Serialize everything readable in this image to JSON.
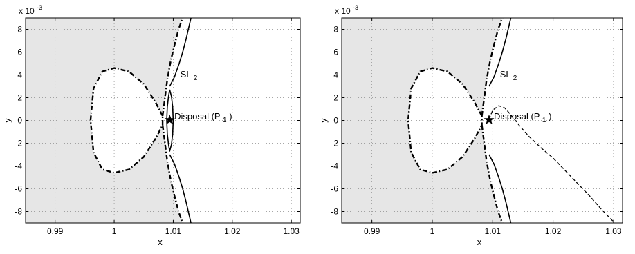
{
  "chart_data": [
    {
      "type": "line",
      "panel": "left",
      "xlabel": "x",
      "ylabel": "y",
      "y_exponent_label": "x 10",
      "y_exponent_value": "-3",
      "xlim": [
        0.985,
        1.0315
      ],
      "ylim": [
        -9,
        9
      ],
      "xticks": [
        0.99,
        1,
        1.01,
        1.02,
        1.03
      ],
      "xtick_labels": [
        "0.99",
        "1",
        "1.01",
        "1.02",
        "1.03"
      ],
      "yticks": [
        -8,
        -6,
        -4,
        -2,
        0,
        2,
        4,
        6,
        8
      ],
      "ytick_labels": [
        "-8",
        "-6",
        "-4",
        "-2",
        "0",
        "2",
        "4",
        "6",
        "8"
      ],
      "grid": true,
      "shaded_region": "forbidden region (gray)",
      "annotations": [
        {
          "label": "SL",
          "subscript": "2",
          "x": 1.0112,
          "y": 3.8
        },
        {
          "label": "Disposal (P",
          "subscript": "1",
          "suffix": ")",
          "x": 1.0102,
          "y": 0.1
        }
      ],
      "marker": {
        "symbol": "star",
        "x": 1.0094,
        "y": 0.05
      },
      "series": [
        {
          "style": "dash-dot",
          "x": [
            1.0082,
            1.007,
            1.005,
            1.0025,
            1.0,
            0.998,
            0.9965,
            0.996,
            0.9965,
            0.998,
            1.0,
            1.0025,
            1.005,
            1.007,
            1.0082
          ],
          "y": [
            0.4,
            1.6,
            3.2,
            4.3,
            4.6,
            4.3,
            2.8,
            0,
            -2.8,
            -4.3,
            -4.6,
            -4.3,
            -3.2,
            -1.6,
            -0.4
          ]
        },
        {
          "style": "dash-dot",
          "x": [
            1.0082,
            1.0086,
            1.009,
            1.0096,
            1.0103,
            1.0109,
            1.0116
          ],
          "y": [
            0.4,
            2.0,
            3.6,
            5.3,
            6.8,
            8.0,
            9.0
          ]
        },
        {
          "style": "dash-dot",
          "x": [
            1.0082,
            1.0086,
            1.009,
            1.0096,
            1.0103,
            1.0109,
            1.0116
          ],
          "y": [
            -0.4,
            -2.0,
            -3.6,
            -5.3,
            -6.8,
            -8.0,
            -9.0
          ]
        },
        {
          "style": "solid",
          "x": [
            1.0094,
            1.0102,
            1.011,
            1.0116,
            1.0122,
            1.0126,
            1.013
          ],
          "y": [
            3.0,
            3.8,
            5.0,
            6.0,
            7.2,
            8.1,
            9.0
          ]
        },
        {
          "style": "solid",
          "x": [
            1.0094,
            1.0102,
            1.011,
            1.0116,
            1.0122,
            1.0126,
            1.013
          ],
          "y": [
            -3.0,
            -3.8,
            -5.0,
            -6.0,
            -7.2,
            -8.1,
            -9.0
          ]
        },
        {
          "style": "solid",
          "x": [
            1.0094,
            1.0092,
            1.009,
            1.0089,
            1.009,
            1.0092,
            1.0094,
            1.0097,
            1.0099,
            1.01,
            1.0099,
            1.0097,
            1.0094
          ],
          "y": [
            2.7,
            2.1,
            1.2,
            0,
            -1.2,
            -2.1,
            -2.7,
            -2.1,
            -1.2,
            0,
            1.2,
            2.1,
            2.7
          ]
        }
      ]
    },
    {
      "type": "line",
      "panel": "right",
      "xlabel": "x",
      "ylabel": "y",
      "y_exponent_label": "x 10",
      "y_exponent_value": "-3",
      "xlim": [
        0.985,
        1.0315
      ],
      "ylim": [
        -9,
        9
      ],
      "xticks": [
        0.99,
        1,
        1.01,
        1.02,
        1.03
      ],
      "xtick_labels": [
        "0.99",
        "1",
        "1.01",
        "1.02",
        "1.03"
      ],
      "yticks": [
        -8,
        -6,
        -4,
        -2,
        0,
        2,
        4,
        6,
        8
      ],
      "ytick_labels": [
        "-8",
        "-6",
        "-4",
        "-2",
        "0",
        "2",
        "4",
        "6",
        "8"
      ],
      "grid": true,
      "shaded_region": "forbidden region (gray)",
      "annotations": [
        {
          "label": "SL",
          "subscript": "2",
          "x": 1.0112,
          "y": 3.8
        },
        {
          "label": "Disposal (P",
          "subscript": "1",
          "suffix": ")",
          "x": 1.0102,
          "y": 0.1
        }
      ],
      "marker": {
        "symbol": "star",
        "x": 1.0094,
        "y": 0.05
      },
      "series": [
        {
          "style": "dash-dot",
          "x": [
            1.0082,
            1.007,
            1.005,
            1.0025,
            1.0,
            0.998,
            0.9965,
            0.996,
            0.9965,
            0.998,
            1.0,
            1.0025,
            1.005,
            1.007,
            1.0082
          ],
          "y": [
            0.4,
            1.6,
            3.2,
            4.3,
            4.6,
            4.3,
            2.8,
            0,
            -2.8,
            -4.3,
            -4.6,
            -4.3,
            -3.2,
            -1.6,
            -0.4
          ]
        },
        {
          "style": "dash-dot",
          "x": [
            1.0082,
            1.0086,
            1.009,
            1.0096,
            1.0103,
            1.0109,
            1.0116
          ],
          "y": [
            0.4,
            2.0,
            3.6,
            5.3,
            6.8,
            8.0,
            9.0
          ]
        },
        {
          "style": "dash-dot",
          "x": [
            1.0082,
            1.0086,
            1.009,
            1.0096,
            1.0103,
            1.0109,
            1.0116
          ],
          "y": [
            -0.4,
            -2.0,
            -3.6,
            -5.3,
            -6.8,
            -8.0,
            -9.0
          ]
        },
        {
          "style": "solid",
          "x": [
            1.0094,
            1.0102,
            1.011,
            1.0116,
            1.0122,
            1.0126,
            1.013
          ],
          "y": [
            3.0,
            3.8,
            5.0,
            6.0,
            7.2,
            8.1,
            9.0
          ]
        },
        {
          "style": "solid",
          "x": [
            1.0094,
            1.0102,
            1.011,
            1.0116,
            1.0122,
            1.0126,
            1.013
          ],
          "y": [
            -3.0,
            -3.8,
            -5.0,
            -6.0,
            -7.2,
            -8.1,
            -9.0
          ]
        },
        {
          "style": "dashed",
          "x": [
            1.0094,
            1.01,
            1.011,
            1.012,
            1.013,
            1.0145,
            1.016,
            1.018,
            1.02,
            1.022,
            1.024,
            1.026,
            1.028,
            1.03
          ],
          "y": [
            0.1,
            0.9,
            1.3,
            1.1,
            0.5,
            -0.5,
            -1.4,
            -2.4,
            -3.3,
            -4.4,
            -5.5,
            -6.6,
            -7.8,
            -8.9
          ]
        }
      ]
    }
  ]
}
